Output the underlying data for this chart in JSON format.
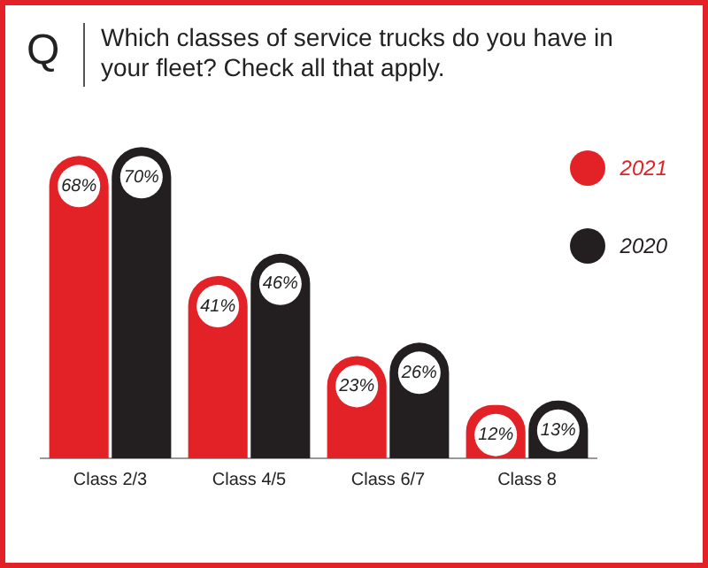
{
  "chart_data": {
    "type": "bar",
    "title": "Which classes of service trucks do you have in your fleet? Check all that apply.",
    "annotations": [
      "Q"
    ],
    "categories": [
      "Class 2/3",
      "Class 4/5",
      "Class 6/7",
      "Class 8"
    ],
    "series": [
      {
        "name": "2021",
        "color": "#e32228",
        "values": [
          68,
          41,
          23,
          12
        ],
        "value_labels": [
          "68%",
          "41%",
          "23%",
          "12%"
        ]
      },
      {
        "name": "2020",
        "color": "#231f20",
        "values": [
          70,
          46,
          26,
          13
        ],
        "value_labels": [
          "70%",
          "46%",
          "26%",
          "13%"
        ]
      }
    ],
    "legend": "top right",
    "grid": false
  }
}
